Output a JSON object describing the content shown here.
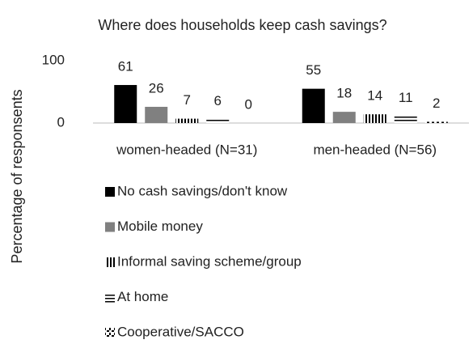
{
  "chart_data": {
    "type": "bar",
    "title": "Where does households keep cash savings?",
    "y_label": "Percentage of responsents",
    "categories": [
      "women-headed (N=31)",
      "men-headed (N=56)"
    ],
    "ylim": [
      0,
      100
    ],
    "yticks": [
      0,
      100
    ],
    "series": [
      {
        "name": "No cash savings/don't know",
        "color": "#000000",
        "values": [
          61,
          55
        ]
      },
      {
        "name": "Mobile money",
        "color": "#808080",
        "values": [
          26,
          18
        ]
      },
      {
        "name": "Informal saving scheme/group",
        "color": "#000000",
        "pattern": "vertical",
        "values": [
          7,
          14
        ]
      },
      {
        "name": "At home",
        "color": "#000000",
        "pattern": "horizontal",
        "values": [
          6,
          11
        ]
      },
      {
        "name": "Cooperative/SACCO",
        "color": "#000000",
        "pattern": "dashed",
        "values": [
          0,
          2
        ]
      }
    ]
  }
}
